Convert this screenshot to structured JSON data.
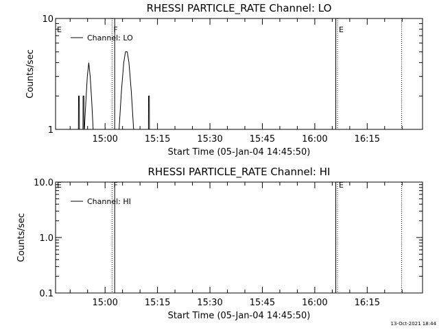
{
  "chart_data": [
    {
      "type": "line",
      "title": "RHESSI PARTICLE_RATE Channel: LO",
      "xlabel": "Start Time (05-Jan-04 14:45:50)",
      "ylabel": "Counts/sec",
      "yscale": "log",
      "ylim": [
        1,
        10
      ],
      "xlim": [
        "14:45:50",
        "16:30:50"
      ],
      "y_ticks": [
        "1",
        "10"
      ],
      "x_ticks": [
        "15:00",
        "15:15",
        "15:30",
        "15:45",
        "16:00",
        "16:15"
      ],
      "legend": {
        "placement": "top-left",
        "entries": [
          "Channel: LO"
        ]
      },
      "series": [
        {
          "name": "Channel: LO",
          "points": [
            [
              "14:52:22",
              1
            ],
            [
              "14:52:24",
              2.0
            ],
            [
              "14:52:38",
              2.0
            ],
            [
              "14:52:40",
              1
            ],
            [
              "14:53:40",
              1
            ],
            [
              "14:53:42",
              2.0
            ],
            [
              "14:53:56",
              2.0
            ],
            [
              "14:53:58",
              1
            ],
            [
              "14:54:05",
              1
            ],
            [
              "14:54:30",
              1.8
            ],
            [
              "14:54:55",
              3.0
            ],
            [
              "14:55:20",
              4.0
            ],
            [
              "14:55:45",
              3.0
            ],
            [
              "14:56:10",
              1.8
            ],
            [
              "14:56:35",
              1
            ],
            [
              "15:04:00",
              1
            ],
            [
              "15:04:40",
              2.2
            ],
            [
              "15:05:20",
              4.0
            ],
            [
              "15:05:50",
              5.0
            ],
            [
              "15:06:20",
              5.0
            ],
            [
              "15:06:50",
              4.0
            ],
            [
              "15:07:30",
              2.2
            ],
            [
              "15:08:10",
              1
            ],
            [
              "15:12:24",
              1
            ],
            [
              "15:12:26",
              2.0
            ],
            [
              "15:12:40",
              2.0
            ],
            [
              "15:12:42",
              1
            ]
          ]
        }
      ],
      "markers": [
        {
          "label": "E",
          "time": "14:45:50",
          "style": "dotted"
        },
        {
          "label": "F",
          "time": "15:02:00",
          "style": "dotted"
        },
        {
          "label": "E",
          "time": "16:06:30",
          "style": "dotted"
        },
        {
          "label": "",
          "time": "16:24:50",
          "style": "dotted"
        }
      ],
      "solid_lines": [
        "15:02:45",
        "16:06:00"
      ]
    },
    {
      "type": "line",
      "title": "RHESSI PARTICLE_RATE Channel: HI",
      "xlabel": "Start Time (05-Jan-04 14:45:50)",
      "ylabel": "Counts/sec",
      "yscale": "log",
      "ylim": [
        0.1,
        10
      ],
      "xlim": [
        "14:45:50",
        "16:30:50"
      ],
      "y_ticks": [
        "0.1",
        "1.0",
        "10.0"
      ],
      "x_ticks": [
        "15:00",
        "15:15",
        "15:30",
        "15:45",
        "16:00",
        "16:15"
      ],
      "legend": {
        "placement": "top-left",
        "entries": [
          "Channel: HI"
        ]
      },
      "series": [
        {
          "name": "Channel: HI",
          "points": []
        }
      ],
      "markers": [
        {
          "label": "E",
          "time": "14:45:50",
          "style": "dotted"
        },
        {
          "label": "F",
          "time": "15:02:00",
          "style": "dotted"
        },
        {
          "label": "E",
          "time": "16:06:30",
          "style": "dotted"
        },
        {
          "label": "",
          "time": "16:24:50",
          "style": "dotted"
        }
      ],
      "solid_lines": [
        "15:02:45",
        "16:06:00"
      ]
    }
  ],
  "footer": {
    "timestamp": "13-Oct-2021 18:44"
  }
}
